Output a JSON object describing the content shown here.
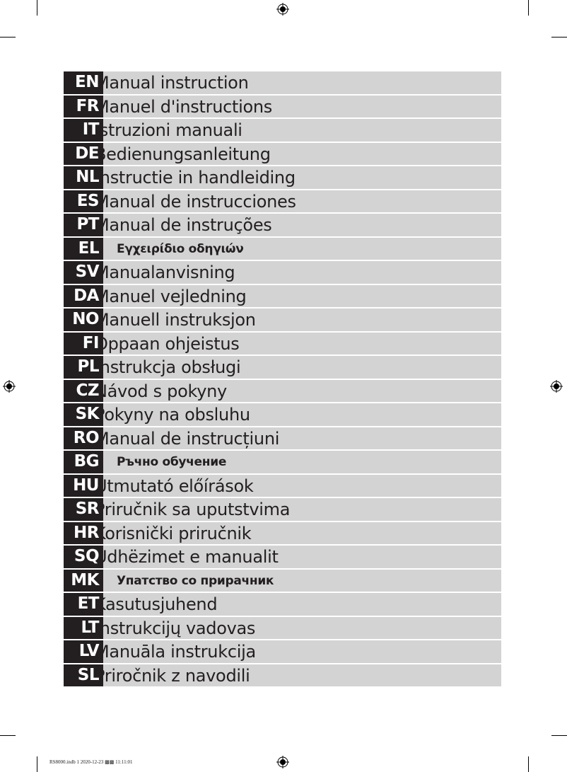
{
  "languages": [
    {
      "code": "EN",
      "title": "Manual instruction"
    },
    {
      "code": "FR",
      "title": "Manuel d'instructions"
    },
    {
      "code": "IT",
      "title": "Istruzioni manuali"
    },
    {
      "code": "DE",
      "title": "Bedienungsanleitung"
    },
    {
      "code": "NL",
      "title": "Instructie in handleiding"
    },
    {
      "code": "ES",
      "title": "Manual de instrucciones"
    },
    {
      "code": "PT",
      "title": "Manual de instruções"
    },
    {
      "code": "EL",
      "title": "Εγχειρίδιο οδηγιών",
      "alt": true
    },
    {
      "code": "SV",
      "title": "Manualanvisning"
    },
    {
      "code": "DA",
      "title": "Manuel vejledning"
    },
    {
      "code": "NO",
      "title": "Manuell instruksjon"
    },
    {
      "code": "FI",
      "title": "Oppaan ohjeistus"
    },
    {
      "code": "PL",
      "title": "Instrukcja obsługi"
    },
    {
      "code": "CZ",
      "title": "Návod s pokyny"
    },
    {
      "code": "SK",
      "title": "Pokyny na obsluhu"
    },
    {
      "code": "RO",
      "title": "Manual de instrucțiuni"
    },
    {
      "code": "BG",
      "title": "Ръчно обучение",
      "alt": true
    },
    {
      "code": "HU",
      "title": "Útmutató előírások"
    },
    {
      "code": "SR",
      "title": "Priručnik sa uputstvima"
    },
    {
      "code": "HR",
      "title": "Korisnički priručnik"
    },
    {
      "code": "SQ",
      "title": "Udhëzimet e manualit"
    },
    {
      "code": "MK",
      "title": "Упатство со прирачник",
      "alt": true
    },
    {
      "code": "ET",
      "title": "Kasutusjuhend"
    },
    {
      "code": "LT",
      "title": "Instrukcijų vadovas"
    },
    {
      "code": "LV",
      "title": "Manuāla instrukcija"
    },
    {
      "code": "SL",
      "title": "Priročnik z navodili"
    }
  ],
  "footer": {
    "slug": "RS8000.indb   1 2020-12-23   ▩▩ 11:11:01"
  },
  "colors": {
    "code_bg": "#231f20",
    "row_bg": "#d3d3d3"
  }
}
